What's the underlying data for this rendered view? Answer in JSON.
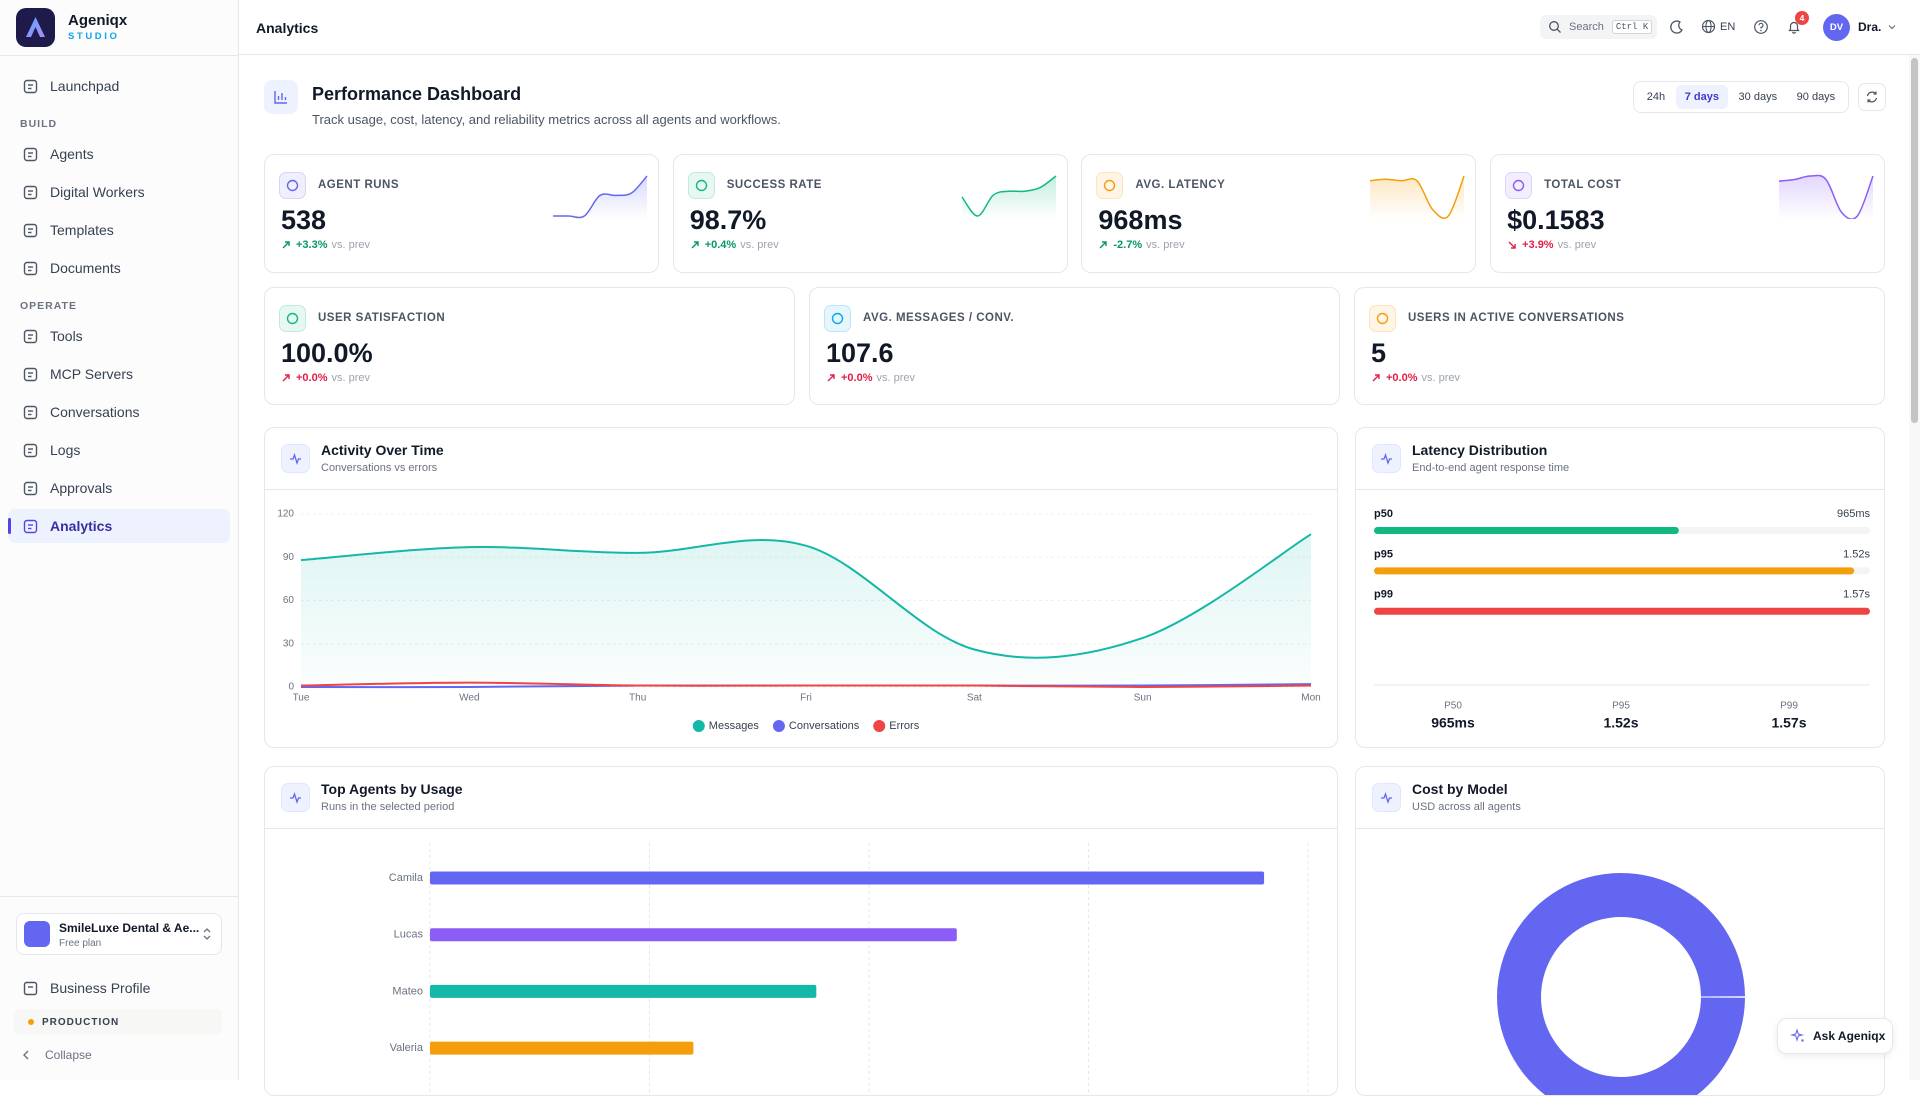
{
  "sidebar": {
    "brand": "Ageniqx",
    "brand_tagline": "STUDIO",
    "launchpad": "Launchpad",
    "sections": [
      {
        "title": "BUILD",
        "items": [
          {
            "label": "Agents"
          },
          {
            "label": "Digital Workers"
          },
          {
            "label": "Templates"
          },
          {
            "label": "Documents"
          }
        ]
      },
      {
        "title": "OPERATE",
        "items": [
          {
            "label": "Tools"
          },
          {
            "label": "MCP Servers"
          },
          {
            "label": "Conversations"
          },
          {
            "label": "Logs"
          },
          {
            "label": "Approvals"
          },
          {
            "label": "Analytics",
            "active": true
          }
        ]
      }
    ],
    "workspace": {
      "name": "SmileLuxe Dental & Ae...",
      "plan": "Free plan"
    },
    "business_profile": "Business Profile",
    "environment": "PRODUCTION",
    "collapse": "Collapse"
  },
  "topbar": {
    "title": "Analytics",
    "search": "Search",
    "shortcut": "Ctrl K",
    "language": "EN",
    "notification_count": 4,
    "avatar_initials": "DV",
    "user_name": "Dra."
  },
  "dashboard": {
    "title": "Performance Dashboard",
    "subtitle": "Track usage, cost, latency, and reliability metrics across all agents and workflows.",
    "ranges": [
      {
        "label": "24h"
      },
      {
        "label": "7 days",
        "selected": true
      },
      {
        "label": "30 days"
      },
      {
        "label": "90 days"
      }
    ]
  },
  "kpis": [
    {
      "label": "AGENT RUNS",
      "value": "538",
      "delta": "+3.3%",
      "delta_note": "vs. prev",
      "direction": "up",
      "delta_color": "#059669",
      "accent": "#6366f1",
      "sparkline": [
        0,
        0,
        0,
        18,
        18,
        20,
        35
      ]
    },
    {
      "label": "SUCCESS RATE",
      "value": "98.7%",
      "delta": "+0.4%",
      "delta_note": "vs. prev",
      "direction": "up",
      "delta_color": "#059669",
      "accent": "#10b981",
      "sparkline": [
        17,
        7,
        18,
        20,
        20,
        22,
        28
      ]
    },
    {
      "label": "AVG. LATENCY",
      "value": "968ms",
      "delta": "-2.7%",
      "delta_note": "vs. prev",
      "direction": "up",
      "delta_color": "#059669",
      "accent": "#f59e0b",
      "sparkline": [
        30,
        31,
        30,
        30,
        12,
        8,
        33
      ]
    },
    {
      "label": "TOTAL COST",
      "value": "$0.1583",
      "delta": "+3.9%",
      "delta_note": "vs. prev",
      "direction": "down",
      "delta_color": "#e11d48",
      "accent": "#8b5cf6",
      "sparkline": [
        30,
        31,
        33,
        31,
        12,
        10,
        33
      ]
    }
  ],
  "kpis_secondary": [
    {
      "label": "USER SATISFACTION",
      "value": "100.0%",
      "delta": "+0.0%",
      "delta_note": "vs. prev",
      "direction": "up",
      "delta_color": "#e11d48",
      "accent": "#10b981"
    },
    {
      "label": "AVG. MESSAGES / CONV.",
      "value": "107.6",
      "delta": "+0.0%",
      "delta_note": "vs. prev",
      "direction": "up",
      "delta_color": "#e11d48",
      "accent": "#0ea5e9"
    },
    {
      "label": "USERS IN ACTIVE CONVERSATIONS",
      "value": "5",
      "delta": "+0.0%",
      "delta_note": "vs. prev",
      "direction": "up",
      "delta_color": "#e11d48",
      "accent": "#f59e0b"
    }
  ],
  "activity": {
    "title": "Activity Over Time",
    "subtitle": "Conversations vs errors",
    "chart_data": {
      "type": "line",
      "categories": [
        "Tue",
        "Wed",
        "Thu",
        "Fri",
        "Sat",
        "Sun",
        "Mon"
      ],
      "series": [
        {
          "name": "Messages",
          "color": "#14b8a6",
          "area": true,
          "values": [
            88,
            97,
            93,
            98,
            26,
            34,
            106
          ]
        },
        {
          "name": "Conversations",
          "color": "#6366f1",
          "values": [
            0,
            0,
            1,
            1,
            1,
            1,
            2
          ]
        },
        {
          "name": "Errors",
          "color": "#ef4444",
          "values": [
            1,
            3,
            1,
            1,
            1,
            0,
            1
          ]
        }
      ],
      "ylim": [
        0,
        120
      ],
      "yticks": [
        0,
        30,
        60,
        90,
        120
      ],
      "grid": true,
      "legend": "bottom"
    }
  },
  "latency": {
    "title": "Latency Distribution",
    "subtitle": "End-to-end agent response time",
    "chart_data": {
      "type": "bar",
      "orientation": "horizontal",
      "categories": [
        "p50",
        "p95",
        "p99"
      ],
      "values": [
        965,
        1520,
        1570
      ],
      "value_labels": [
        "965ms",
        "1.52s",
        "1.57s"
      ],
      "colors": [
        "#10b981",
        "#f59e0b",
        "#ef4444"
      ],
      "xlim": [
        0,
        1570
      ]
    },
    "summary_labels": [
      "P50",
      "P95",
      "P99"
    ]
  },
  "top_agents": {
    "title": "Top Agents by Usage",
    "subtitle": "Runs in the selected period",
    "chart_data": {
      "type": "bar",
      "orientation": "horizontal",
      "categories": [
        "Camila",
        "Lucas",
        "Mateo",
        "Valeria"
      ],
      "values": [
        190,
        120,
        88,
        60
      ],
      "colors": [
        "#6366f1",
        "#8b5cf6",
        "#14b8a6",
        "#f59e0b"
      ],
      "xlim": [
        0,
        200
      ],
      "xticks": [
        0,
        50,
        100,
        150,
        200
      ],
      "grid": true
    }
  },
  "cost_by_model": {
    "title": "Cost by Model",
    "subtitle": "USD across all agents",
    "chart_data": {
      "type": "pie",
      "donut": true,
      "values": [
        0.1583
      ],
      "colors": [
        "#6366f1"
      ]
    }
  },
  "assistant_button": "Ask Ageniqx"
}
